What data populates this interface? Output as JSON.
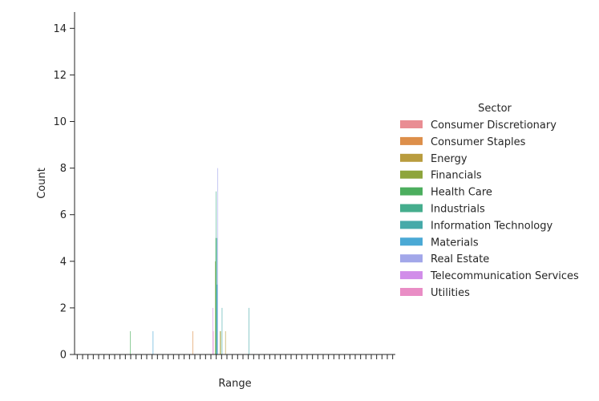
{
  "chart_data": {
    "type": "bar",
    "xlabel": "Range",
    "ylabel": "Count",
    "ylim": [
      0,
      14.7
    ],
    "yticks": [
      0,
      2,
      4,
      6,
      8,
      10,
      12,
      14
    ],
    "grid": false,
    "legend": {
      "title": "Sector",
      "placement": "right",
      "entries": [
        {
          "name": "Consumer Discretionary",
          "color": "#e98d93"
        },
        {
          "name": "Consumer Staples",
          "color": "#dd8f4a"
        },
        {
          "name": "Energy",
          "color": "#b99c3e"
        },
        {
          "name": "Financials",
          "color": "#8ea53c"
        },
        {
          "name": "Health Care",
          "color": "#4cae5e"
        },
        {
          "name": "Industrials",
          "color": "#45ad8d"
        },
        {
          "name": "Information Technology",
          "color": "#46aaa9"
        },
        {
          "name": "Materials",
          "color": "#4aa9d5"
        },
        {
          "name": "Real Estate",
          "color": "#a2a7e9"
        },
        {
          "name": "Telecommunication Services",
          "color": "#d18de9"
        },
        {
          "name": "Utilities",
          "color": "#e98dc5"
        }
      ]
    },
    "range_count": 60,
    "bars": [
      {
        "range_index": 10,
        "sector": "Health Care",
        "value": 1
      },
      {
        "range_index": 14,
        "sector": "Materials",
        "value": 1
      },
      {
        "range_index": 22,
        "sector": "Consumer Staples",
        "value": 1
      },
      {
        "range_index": 25,
        "sector": "Telecommunication Services",
        "value": 2
      },
      {
        "range_index": 25,
        "sector": "Utilities",
        "value": 1
      },
      {
        "range_index": 26,
        "sector": "Real Estate",
        "value": 8
      },
      {
        "range_index": 26,
        "sector": "Financials",
        "value": 4
      },
      {
        "range_index": 26,
        "sector": "Materials",
        "value": 3
      },
      {
        "range_index": 26,
        "sector": "Information Technology",
        "value": 5
      },
      {
        "range_index": 26,
        "sector": "Industrials",
        "value": 7
      },
      {
        "range_index": 26,
        "sector": "Health Care",
        "value": 5
      },
      {
        "range_index": 27,
        "sector": "Information Technology",
        "value": 2
      },
      {
        "range_index": 27,
        "sector": "Energy",
        "value": 1
      },
      {
        "range_index": 27,
        "sector": "Financials",
        "value": 1
      },
      {
        "range_index": 28,
        "sector": "Energy",
        "value": 1
      },
      {
        "range_index": 32,
        "sector": "Information Technology",
        "value": 2
      }
    ]
  }
}
